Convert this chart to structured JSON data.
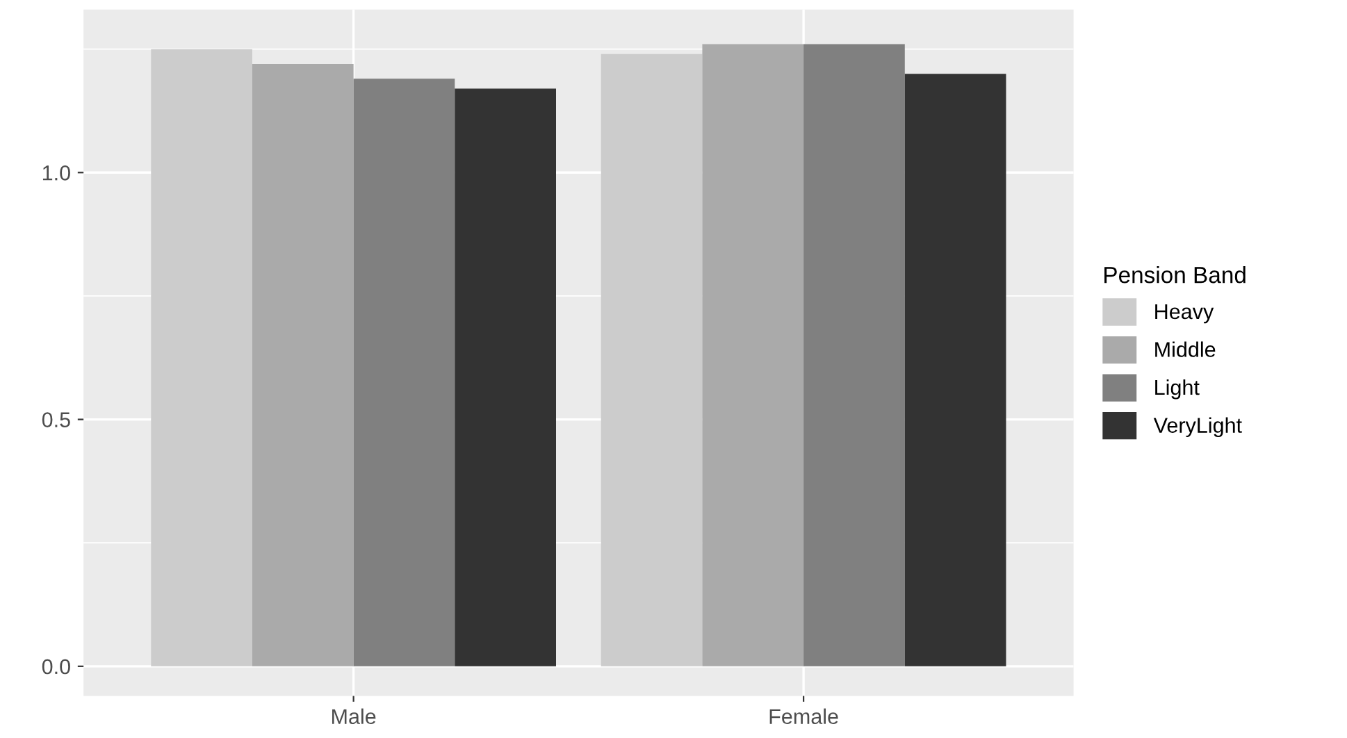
{
  "chart_data": {
    "type": "bar",
    "categories": [
      "Male",
      "Female"
    ],
    "legend_title": "Pension Band",
    "legend": "right",
    "grid": true,
    "ylim": [
      -0.06,
      1.33
    ],
    "yticks": [
      {
        "value": 0.0,
        "label": "0.0"
      },
      {
        "value": 0.5,
        "label": "0.5"
      },
      {
        "value": 1.0,
        "label": "1.0"
      }
    ],
    "series": [
      {
        "name": "Heavy",
        "color": "#cccccc",
        "values": [
          1.25,
          1.24
        ]
      },
      {
        "name": "Middle",
        "color": "#aaaaaa",
        "values": [
          1.22,
          1.26
        ]
      },
      {
        "name": "Light",
        "color": "#808080",
        "values": [
          1.19,
          1.26
        ]
      },
      {
        "name": "VeryLight",
        "color": "#333333",
        "values": [
          1.17,
          1.2
        ]
      }
    ]
  }
}
